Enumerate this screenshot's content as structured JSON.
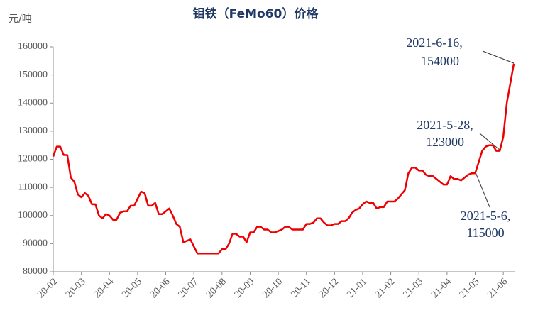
{
  "chart_data": {
    "type": "line",
    "title": "钼铁（FeMo60）价格",
    "y_label": "元/吨",
    "color": "#ee0000",
    "categories": [
      "20-02",
      null,
      null,
      null,
      null,
      null,
      null,
      null,
      "20-03",
      null,
      null,
      null,
      null,
      null,
      null,
      null,
      "20-04",
      null,
      null,
      null,
      null,
      null,
      null,
      null,
      "20-05",
      null,
      null,
      null,
      null,
      null,
      null,
      null,
      "20-06",
      null,
      null,
      null,
      null,
      null,
      null,
      null,
      "20-07",
      null,
      null,
      null,
      null,
      null,
      null,
      null,
      "20-08",
      null,
      null,
      null,
      null,
      null,
      null,
      null,
      "20-09",
      null,
      null,
      null,
      null,
      null,
      null,
      null,
      "20-10",
      null,
      null,
      null,
      null,
      null,
      null,
      null,
      "20-11",
      null,
      null,
      null,
      null,
      null,
      null,
      null,
      "20-12",
      null,
      null,
      null,
      null,
      null,
      null,
      null,
      "21-01",
      null,
      null,
      null,
      null,
      null,
      null,
      null,
      "21-02",
      null,
      null,
      null,
      null,
      null,
      null,
      null,
      "21-03",
      null,
      null,
      null,
      null,
      null,
      null,
      null,
      "21-04",
      null,
      null,
      null,
      null,
      null,
      null,
      null,
      "21-05",
      null,
      null,
      null,
      null,
      null,
      null,
      null,
      "21-06",
      null,
      null,
      null
    ],
    "values": [
      121000,
      124500,
      124500,
      121500,
      121500,
      113500,
      112000,
      107500,
      106500,
      108000,
      107000,
      104000,
      104000,
      100000,
      99000,
      100500,
      100000,
      98500,
      98500,
      101000,
      101500,
      101500,
      103500,
      103500,
      106000,
      108500,
      108000,
      103500,
      103500,
      104500,
      100500,
      100500,
      101500,
      102500,
      100000,
      97000,
      96000,
      90500,
      91000,
      91500,
      89000,
      86500,
      86500,
      86500,
      86500,
      86500,
      86500,
      86500,
      88000,
      88000,
      90000,
      93500,
      93500,
      92500,
      92500,
      90500,
      94000,
      94000,
      96000,
      96000,
      95000,
      95000,
      94000,
      94000,
      94500,
      95000,
      96000,
      96000,
      95000,
      95000,
      95000,
      95000,
      97000,
      97000,
      97500,
      99000,
      99000,
      97500,
      96500,
      96500,
      97000,
      97000,
      98000,
      98000,
      99000,
      101000,
      102000,
      102500,
      104000,
      105000,
      104500,
      104500,
      102500,
      103000,
      103000,
      105000,
      105000,
      105000,
      106000,
      107500,
      109000,
      115000,
      117000,
      117000,
      116000,
      116000,
      114500,
      114000,
      114000,
      113000,
      112000,
      111000,
      111000,
      114000,
      113000,
      113000,
      112500,
      113500,
      114500,
      115000,
      115000,
      119000,
      123000,
      124500,
      125000,
      125000,
      123000,
      123000,
      128000,
      140000,
      147000,
      154000
    ],
    "ylim": [
      80000,
      160000
    ],
    "yticks": [
      80000,
      90000,
      100000,
      110000,
      120000,
      130000,
      140000,
      150000,
      160000
    ],
    "annotations": [
      [
        "2021-6-16,",
        "154000"
      ],
      [
        "2021-5-28,",
        "123000"
      ],
      [
        "2021-5-6,",
        "115000"
      ]
    ]
  }
}
